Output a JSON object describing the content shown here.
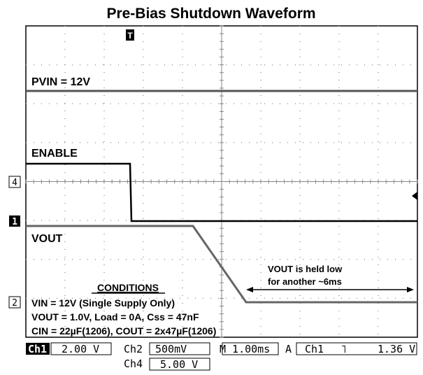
{
  "title": "Pre-Bias Shutdown Waveform",
  "markers": {
    "trigger": "T",
    "ch4": "4",
    "ch1": "1",
    "ch2": "2"
  },
  "traces": {
    "pvin": "PVIN = 12V",
    "enable": "ENABLE",
    "vout": "VOUT"
  },
  "note": [
    "VOUT is held  low",
    "for another ~6ms"
  ],
  "conditions": {
    "heading": "CONDITIONS",
    "lines": [
      "VIN = 12V (Single Supply Only)",
      "VOUT = 1.0V, Load = 0A, Css = 47nF",
      "CIN = 22µF(1206), COUT = 2x47µF(1206)"
    ]
  },
  "status": {
    "ch1": "Ch1",
    "ch1_scale": "2.00 V",
    "ch2": "Ch2",
    "ch2_scale": "500mV",
    "timebase": "M 1.00ms",
    "trigger_mode": "A",
    "trigger_source": "Ch1",
    "trigger_slope": "˥",
    "trigger_level": "1.36 V",
    "ch4": "Ch4",
    "ch4_scale": "5.00 V"
  }
}
